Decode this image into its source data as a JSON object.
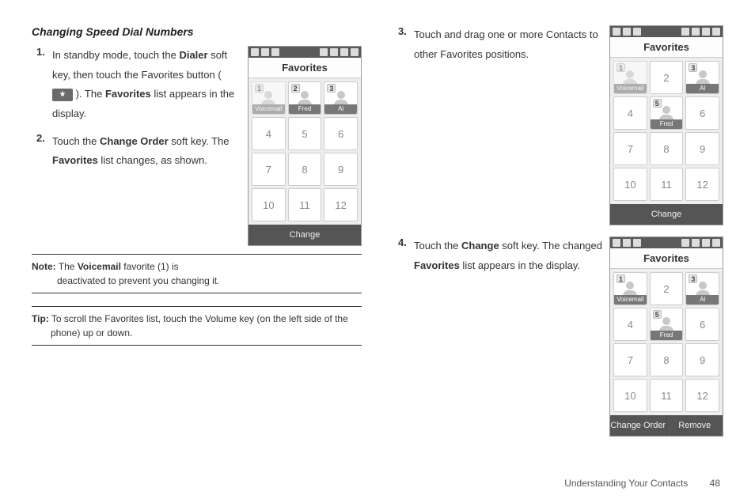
{
  "heading": "Changing Speed Dial Numbers",
  "left": {
    "steps": [
      {
        "num": "1.",
        "parts": [
          "In standby mode, touch the ",
          "Dialer",
          " soft key, then touch the Favorites button ( ",
          "ICON",
          " ). The ",
          "Favorites",
          " list appears in the display."
        ]
      },
      {
        "num": "2.",
        "parts": [
          "Touch the ",
          "Change Order",
          " soft key. The ",
          "Favorites",
          " list changes, as shown."
        ]
      }
    ],
    "note_label": "Note:",
    "note_line1": " The ",
    "note_bold": "Voicemail",
    "note_line1b": " favorite (1) is",
    "note_line2": "deactivated to prevent you changing it.",
    "tip_label": "Tip:",
    "tip_line1": " To scroll the Favorites list, touch the Volume key (on the left side of the",
    "tip_line2": "phone) up or down."
  },
  "right": {
    "steps": [
      {
        "num": "3.",
        "parts": [
          "Touch and drag one or more Contacts to other Favorites positions."
        ]
      },
      {
        "num": "4.",
        "parts": [
          "Touch the ",
          "Change",
          " soft key. The changed ",
          "Favorites",
          " list appears in the display."
        ]
      }
    ]
  },
  "phone_common": {
    "title": "Favorites",
    "colors": {
      "statusbar": "#5a5a5a",
      "softbar": "#555555",
      "cell_bg": "#ffffff",
      "cell_border": "#cccccc",
      "grid_bg": "#eeeeee",
      "label_bg": "#777777",
      "text_muted": "#888888"
    }
  },
  "phoneA": {
    "cells": [
      {
        "type": "contact",
        "badge": "1",
        "label": "Voicemail",
        "dim": true
      },
      {
        "type": "contact",
        "badge": "2",
        "label": "Fred"
      },
      {
        "type": "contact",
        "badge": "3",
        "label": "Al"
      },
      {
        "type": "num",
        "text": "4"
      },
      {
        "type": "num",
        "text": "5"
      },
      {
        "type": "num",
        "text": "6"
      },
      {
        "type": "num",
        "text": "7"
      },
      {
        "type": "num",
        "text": "8"
      },
      {
        "type": "num",
        "text": "9"
      },
      {
        "type": "num",
        "text": "10"
      },
      {
        "type": "num",
        "text": "11"
      },
      {
        "type": "num",
        "text": "12"
      }
    ],
    "soft": [
      "Change"
    ]
  },
  "phoneB": {
    "cells": [
      {
        "type": "contact",
        "badge": "1",
        "label": "Voicemail",
        "dim": true
      },
      {
        "type": "num",
        "text": "2"
      },
      {
        "type": "contact",
        "badge": "3",
        "label": "Al"
      },
      {
        "type": "num",
        "text": "4"
      },
      {
        "type": "contact",
        "badge": "5",
        "label": "Fred"
      },
      {
        "type": "num",
        "text": "6"
      },
      {
        "type": "num",
        "text": "7"
      },
      {
        "type": "num",
        "text": "8"
      },
      {
        "type": "num",
        "text": "9"
      },
      {
        "type": "num",
        "text": "10"
      },
      {
        "type": "num",
        "text": "11"
      },
      {
        "type": "num",
        "text": "12"
      }
    ],
    "soft": [
      "Change"
    ]
  },
  "phoneC": {
    "cells": [
      {
        "type": "contact",
        "badge": "1",
        "label": "Voicemail"
      },
      {
        "type": "num",
        "text": "2"
      },
      {
        "type": "contact",
        "badge": "3",
        "label": "Al"
      },
      {
        "type": "num",
        "text": "4"
      },
      {
        "type": "contact",
        "badge": "5",
        "label": "Fred"
      },
      {
        "type": "num",
        "text": "6"
      },
      {
        "type": "num",
        "text": "7"
      },
      {
        "type": "num",
        "text": "8"
      },
      {
        "type": "num",
        "text": "9"
      },
      {
        "type": "num",
        "text": "10"
      },
      {
        "type": "num",
        "text": "11"
      },
      {
        "type": "num",
        "text": "12"
      }
    ],
    "soft": [
      "Change Order",
      "Remove"
    ]
  },
  "footer": {
    "section": "Understanding Your Contacts",
    "page": "48"
  }
}
